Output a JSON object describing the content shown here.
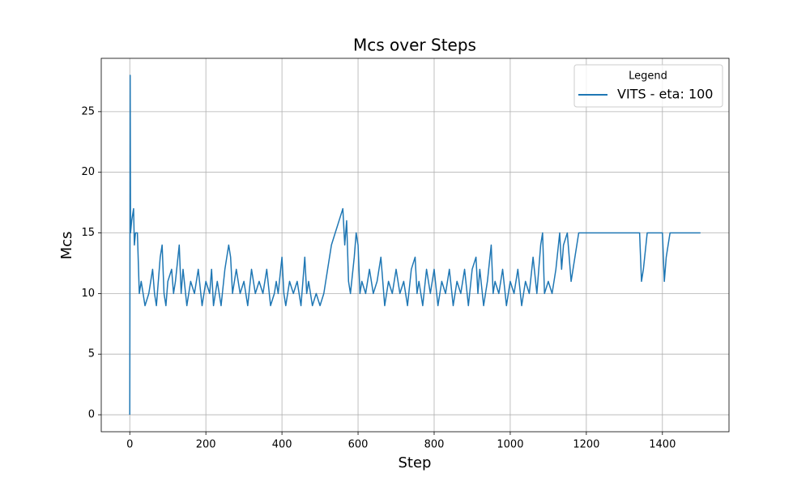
{
  "chart_data": {
    "type": "line",
    "title": "Mcs over Steps",
    "x_label": "Step",
    "y_label": "Mcs",
    "legend_title": "Legend",
    "legend_position": "upper right",
    "grid": true,
    "xlim": [
      -75,
      1575
    ],
    "ylim": [
      -1.4,
      29.4
    ],
    "xticks": [
      0,
      200,
      400,
      600,
      800,
      1000,
      1200,
      1400
    ],
    "yticks": [
      0,
      5,
      10,
      15,
      20,
      25
    ],
    "x": [
      0,
      1,
      2,
      5,
      10,
      12,
      15,
      20,
      25,
      30,
      35,
      40,
      50,
      55,
      60,
      65,
      70,
      80,
      85,
      90,
      95,
      100,
      110,
      115,
      120,
      130,
      135,
      140,
      150,
      160,
      170,
      180,
      190,
      200,
      210,
      215,
      220,
      230,
      240,
      250,
      260,
      265,
      270,
      280,
      290,
      300,
      310,
      320,
      330,
      340,
      350,
      360,
      370,
      380,
      385,
      390,
      400,
      405,
      410,
      420,
      430,
      440,
      450,
      460,
      465,
      470,
      480,
      490,
      500,
      510,
      520,
      530,
      540,
      550,
      560,
      565,
      570,
      575,
      580,
      590,
      595,
      600,
      605,
      610,
      620,
      630,
      640,
      650,
      660,
      670,
      680,
      690,
      700,
      710,
      720,
      730,
      740,
      750,
      755,
      760,
      770,
      780,
      790,
      800,
      810,
      820,
      830,
      840,
      850,
      860,
      870,
      880,
      890,
      900,
      910,
      915,
      920,
      930,
      940,
      950,
      955,
      960,
      970,
      980,
      990,
      1000,
      1010,
      1020,
      1030,
      1040,
      1050,
      1060,
      1070,
      1080,
      1085,
      1090,
      1100,
      1110,
      1120,
      1130,
      1135,
      1140,
      1150,
      1160,
      1170,
      1180,
      1215,
      1250,
      1300,
      1340,
      1345,
      1350,
      1360,
      1400,
      1405,
      1410,
      1420,
      1450,
      1500
    ],
    "series": [
      {
        "name": "VITS - eta: 100",
        "color": "#1f77b4",
        "values": [
          0,
          28,
          15,
          16,
          17,
          14,
          15,
          15,
          10,
          11,
          10,
          9,
          10,
          11,
          12,
          10,
          9,
          13,
          14,
          10,
          9,
          11,
          12,
          10,
          11,
          14,
          10,
          12,
          9,
          11,
          10,
          12,
          9,
          11,
          10,
          12,
          9,
          11,
          9,
          12,
          14,
          13,
          10,
          12,
          10,
          11,
          9,
          12,
          10,
          11,
          10,
          12,
          9,
          10,
          11,
          10,
          13,
          10,
          9,
          11,
          10,
          11,
          9,
          13,
          10,
          11,
          9,
          10,
          9,
          10,
          12,
          14,
          15,
          16,
          17,
          14,
          16,
          11,
          10,
          13,
          15,
          14,
          10,
          11,
          10,
          12,
          10,
          11,
          13,
          9,
          11,
          10,
          12,
          10,
          11,
          9,
          12,
          13,
          10,
          11,
          9,
          12,
          10,
          12,
          9,
          11,
          10,
          12,
          9,
          11,
          10,
          12,
          9,
          12,
          13,
          10,
          12,
          9,
          11,
          14,
          10,
          11,
          10,
          12,
          9,
          11,
          10,
          12,
          9,
          11,
          10,
          13,
          10,
          14,
          15,
          10,
          11,
          10,
          12,
          15,
          12,
          14,
          15,
          11,
          13,
          15,
          15,
          15,
          15,
          15,
          11,
          12,
          15,
          15,
          11,
          13,
          15,
          15,
          15
        ]
      }
    ]
  }
}
